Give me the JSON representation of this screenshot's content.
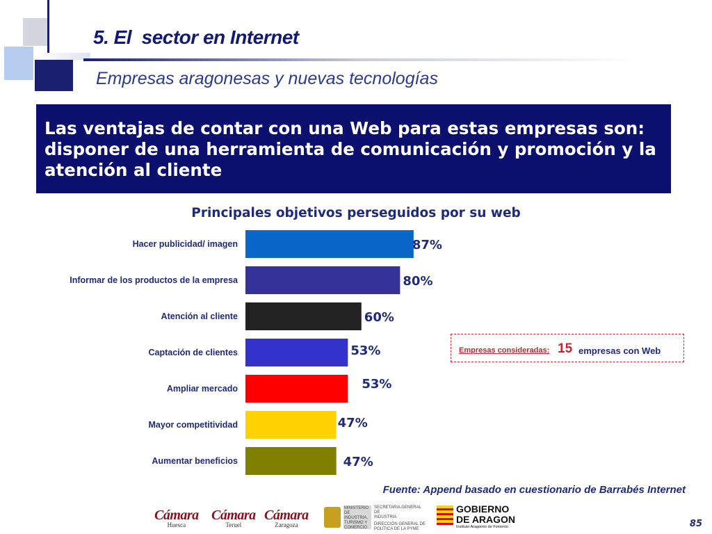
{
  "header": {
    "section_title": "5. El  sector en Internet",
    "subtitle": "Empresas aragonesas y nuevas tecnologías"
  },
  "banner": {
    "text": "Las ventajas de contar con una Web para estas empresas son: disponer de una herramienta de comunicación y promoción y la atención al cliente"
  },
  "chart_data": {
    "type": "bar",
    "orientation": "horizontal",
    "title": "Principales objetivos perseguidos por su web",
    "categories": [
      "Hacer publicidad/ imagen",
      "Informar de los productos de la empresa",
      "Atención al cliente",
      "Captación de clientes",
      "Ampliar mercado",
      "Mayor competitividad",
      "Aumentar beneficios"
    ],
    "values": [
      87,
      80,
      60,
      53,
      53,
      47,
      47
    ],
    "value_labels": [
      "87%",
      "80%",
      "60%",
      "53%",
      "53%",
      "47%",
      "47%"
    ],
    "colors": [
      "#0a66c8",
      "#333399",
      "#222222",
      "#3333cc",
      "#ff0000",
      "#ffd200",
      "#808000"
    ],
    "xlim": [
      0,
      100
    ],
    "grid": false,
    "legend": "none"
  },
  "note": {
    "label": "Empresas consideradas:",
    "count": "15",
    "rest": "empresas con Web"
  },
  "source": "Fuente: Append basado en cuestionario de Barrabés Internet",
  "footer": {
    "logos": {
      "camara_name": "Cámara",
      "cities": [
        "Huesca",
        "Teruel",
        "Zaragoza"
      ],
      "ministerio": [
        "MINISTERIO",
        "DE INDUSTRIA,",
        "TURISMO Y",
        "COMERCIO"
      ],
      "secretaria": [
        "SECRETARIA GENERAL DE",
        "INDUSTRIA"
      ],
      "direccion": [
        "DIRECCIÓN GENERAL DE",
        "POLÍTICA DE LA PYME"
      ],
      "gobierno": [
        "GOBIERNO",
        "DE ARAGON"
      ],
      "instituto": "Instituto Aragonés de Fomento"
    },
    "page_number": "85"
  },
  "colors": {
    "navy": "#0b0f6e",
    "title_blue": "#101a6e",
    "red_note": "#c0282e"
  }
}
